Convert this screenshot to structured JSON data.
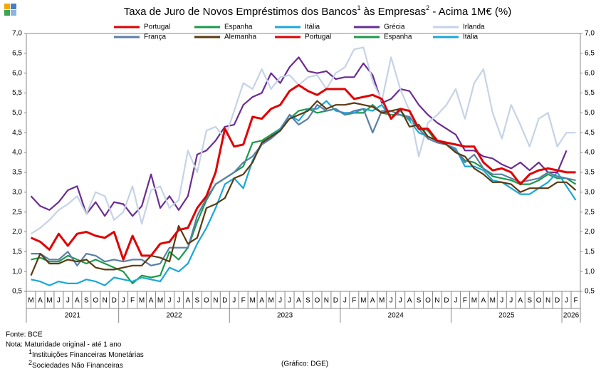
{
  "chart_data": {
    "type": "line",
    "title_parts": [
      "Taxa de Juro de Novos Empréstimos dos Bancos",
      "1",
      " às Empresas",
      "2",
      " - Acima 1M€ (%)"
    ],
    "categories": [
      "M",
      "A",
      "M",
      "J",
      "J",
      "A",
      "S",
      "O",
      "N",
      "D",
      "J",
      "F",
      "M",
      "A",
      "M",
      "J",
      "J",
      "A",
      "S",
      "O",
      "N",
      "D",
      "J",
      "F",
      "M",
      "A",
      "M",
      "J",
      "J",
      "A",
      "S",
      "O",
      "N",
      "D",
      "J",
      "F",
      "M",
      "A",
      "M",
      "J",
      "J",
      "A",
      "S",
      "O",
      "N",
      "D",
      "J",
      "F",
      "M",
      "A",
      "M",
      "J",
      "J",
      "A",
      "S",
      "O",
      "N",
      "D",
      "J",
      "F"
    ],
    "years": [
      "2021",
      "2022",
      "2023",
      "2024",
      "2025",
      "2026"
    ],
    "ylim": [
      0.5,
      7.0
    ],
    "yticks": [
      {
        "value": 0.5,
        "label": "0,5"
      },
      {
        "value": 1.0,
        "label": "1,0"
      },
      {
        "value": 1.5,
        "label": "1,5"
      },
      {
        "value": 2.0,
        "label": "2,0"
      },
      {
        "value": 2.5,
        "label": "2,5"
      },
      {
        "value": 3.0,
        "label": "3,0"
      },
      {
        "value": 3.5,
        "label": "3,5"
      },
      {
        "value": 4.0,
        "label": "4,0"
      },
      {
        "value": 4.5,
        "label": "4,5"
      },
      {
        "value": 5.0,
        "label": "5,0"
      },
      {
        "value": 5.5,
        "label": "5,5"
      },
      {
        "value": 6.0,
        "label": "6,0"
      },
      {
        "value": 6.5,
        "label": "6,5"
      },
      {
        "value": 7.0,
        "label": "7,0"
      }
    ],
    "grid": false,
    "series": [
      {
        "name": "Portugal",
        "color": "#e00000",
        "values": [
          1.85,
          1.75,
          1.55,
          1.95,
          1.65,
          1.95,
          2.0,
          1.9,
          1.85,
          2.0,
          1.3,
          1.9,
          1.4,
          1.4,
          1.7,
          1.75,
          2.05,
          2.1,
          2.6,
          2.9,
          3.5,
          4.6,
          4.15,
          4.2,
          4.9,
          4.85,
          5.1,
          5.2,
          5.55,
          5.7,
          5.55,
          5.45,
          5.6,
          5.6,
          5.6,
          5.35,
          5.4,
          5.45,
          5.35,
          4.85,
          5.1,
          5.05,
          4.6,
          4.6,
          4.3,
          4.25,
          4.2,
          4.15,
          4.15,
          3.75,
          3.55,
          3.6,
          3.5,
          3.2,
          3.45,
          3.55,
          3.6,
          3.55,
          3.5,
          3.5
        ]
      },
      {
        "name": "Espanha",
        "color": "#1a9a4a",
        "values": [
          1.3,
          1.35,
          1.25,
          1.25,
          1.4,
          1.3,
          1.2,
          1.3,
          1.2,
          1.1,
          1.0,
          0.7,
          0.9,
          0.85,
          0.9,
          1.5,
          1.3,
          1.6,
          2.25,
          2.8,
          3.2,
          3.35,
          3.5,
          3.65,
          4.25,
          4.3,
          4.45,
          4.6,
          4.85,
          5.05,
          5.1,
          5.0,
          5.05,
          5.1,
          4.95,
          5.0,
          5.0,
          5.2,
          5.0,
          4.95,
          4.95,
          4.85,
          4.6,
          4.55,
          4.25,
          4.2,
          4.05,
          3.8,
          3.75,
          3.6,
          3.4,
          3.35,
          3.3,
          3.2,
          3.2,
          3.3,
          3.45,
          3.35,
          3.35,
          3.2
        ]
      },
      {
        "name": "Itália",
        "color": "#1aa7d8",
        "values": [
          0.8,
          0.75,
          0.65,
          0.75,
          0.7,
          0.7,
          0.8,
          0.75,
          0.65,
          0.85,
          0.8,
          0.75,
          0.85,
          0.8,
          0.75,
          1.1,
          1.0,
          1.2,
          1.7,
          2.1,
          2.6,
          3.2,
          3.35,
          3.1,
          3.8,
          4.2,
          4.4,
          4.6,
          4.95,
          4.8,
          5.1,
          5.1,
          5.3,
          5.05,
          5.0,
          5.0,
          5.1,
          5.05,
          5.2,
          4.85,
          5.05,
          4.8,
          4.5,
          4.4,
          4.3,
          4.2,
          4.1,
          3.65,
          3.65,
          3.55,
          3.3,
          3.25,
          3.1,
          2.95,
          2.95,
          3.1,
          3.25,
          3.5,
          3.15,
          2.8
        ]
      },
      {
        "name": "Grécia",
        "color": "#6a2c91",
        "values": [
          2.9,
          2.65,
          2.55,
          2.75,
          3.05,
          3.15,
          2.45,
          2.75,
          2.4,
          2.75,
          2.7,
          2.4,
          2.65,
          3.45,
          2.6,
          2.9,
          2.55,
          2.9,
          3.95,
          4.05,
          4.3,
          4.65,
          4.7,
          5.2,
          5.4,
          5.5,
          6.0,
          5.75,
          6.15,
          6.4,
          6.05,
          6.0,
          6.05,
          5.85,
          5.9,
          5.9,
          6.25,
          5.95,
          5.25,
          5.35,
          5.6,
          5.55,
          5.2,
          4.95,
          4.75,
          4.6,
          4.45,
          4.05,
          4.05,
          3.9,
          3.85,
          3.7,
          3.6,
          3.75,
          3.55,
          3.75,
          3.5,
          3.5,
          4.05,
          null
        ]
      },
      {
        "name": "Irlanda",
        "color": "#c5d3e6",
        "values": [
          1.95,
          2.1,
          2.3,
          2.55,
          2.7,
          2.9,
          2.45,
          3.0,
          2.9,
          2.3,
          2.5,
          3.15,
          2.2,
          3.05,
          3.15,
          2.6,
          2.8,
          4.05,
          3.5,
          4.55,
          4.65,
          4.35,
          5.05,
          5.75,
          5.6,
          6.1,
          5.6,
          5.9,
          5.95,
          5.7,
          5.9,
          5.95,
          5.6,
          6.0,
          6.15,
          6.6,
          6.65,
          5.8,
          5.3,
          6.4,
          5.6,
          5.05,
          3.9,
          4.75,
          4.95,
          5.2,
          5.6,
          4.85,
          5.75,
          6.1,
          5.0,
          4.35,
          5.2,
          4.7,
          4.15,
          4.85,
          5.0,
          4.15,
          4.5,
          4.5
        ]
      },
      {
        "name": "França",
        "color": "#5b7fa8",
        "values": [
          1.45,
          1.45,
          1.3,
          1.3,
          1.5,
          1.15,
          1.45,
          1.4,
          1.25,
          1.3,
          1.25,
          1.3,
          1.3,
          1.15,
          1.2,
          1.6,
          1.6,
          1.6,
          2.4,
          2.85,
          3.2,
          3.35,
          3.5,
          3.75,
          3.9,
          4.2,
          4.35,
          4.55,
          4.95,
          4.7,
          4.85,
          5.2,
          5.05,
          5.1,
          4.95,
          5.05,
          5.1,
          4.5,
          5.05,
          5.05,
          4.95,
          4.9,
          4.6,
          4.35,
          4.25,
          4.2,
          4.05,
          3.75,
          3.95,
          3.6,
          3.45,
          3.45,
          3.35,
          3.25,
          3.3,
          3.35,
          3.5,
          3.4,
          3.35,
          3.3
        ]
      },
      {
        "name": "Alemanha",
        "color": "#5a3a10",
        "values": [
          0.9,
          1.45,
          1.2,
          1.2,
          1.3,
          1.25,
          1.3,
          1.1,
          1.05,
          1.05,
          1.1,
          1.15,
          1.15,
          1.4,
          1.35,
          1.25,
          2.15,
          1.7,
          1.85,
          2.6,
          2.7,
          2.85,
          3.35,
          3.45,
          3.75,
          4.25,
          4.4,
          4.55,
          4.85,
          4.95,
          5.05,
          5.3,
          5.1,
          5.2,
          5.2,
          5.25,
          5.2,
          5.15,
          5.0,
          5.05,
          5.1,
          4.65,
          4.7,
          4.4,
          4.3,
          4.2,
          4.0,
          3.9,
          3.6,
          3.45,
          3.25,
          3.25,
          3.2,
          3.0,
          3.1,
          3.1,
          3.1,
          3.25,
          3.25,
          3.05
        ]
      },
      {
        "name": "Portugal",
        "color": "#e00000"
      },
      {
        "name": "Espanha",
        "color": "#1a9a4a"
      },
      {
        "name": "Itália",
        "color": "#1aa7d8"
      }
    ]
  },
  "footer": {
    "source": "Fonte: BCE",
    "note": "Nota: Maturidade original - até 1 ano",
    "footnotes": [
      {
        "mark": "1",
        "text": "Instituições Financeiras Monetárias"
      },
      {
        "mark": "2",
        "text": "Sociedades Não Financeiras"
      }
    ],
    "credit": "(Gráfico: DGE)"
  }
}
